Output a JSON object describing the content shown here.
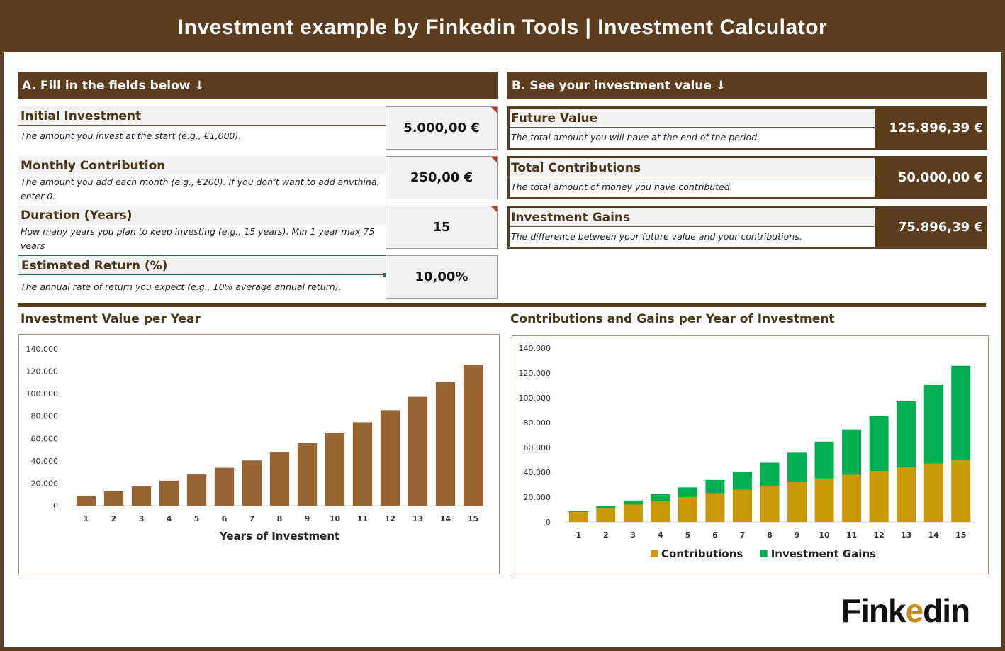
{
  "title": "Investment example by Finkedin Tools | Investment Calculator",
  "section_a": {
    "header": "A. Fill in the fields below ↓",
    "fields": [
      {
        "label": "Initial Investment",
        "desc": "The amount you invest at the start (e.g., €1,000).",
        "value": "5.000,00 €"
      },
      {
        "label": "Monthly Contribution",
        "desc": "The amount you add each month (e.g., €200). If you don’t want to add anvthina. enter 0.",
        "value": "250,00 €"
      },
      {
        "label": "Duration (Years)",
        "desc": "How many years you plan to keep investing (e.g., 15 years). Min 1 year max 75 vears",
        "value": "15"
      },
      {
        "label": "Estimated Return (%)",
        "desc": "The annual rate of return you expect (e.g., 10% average annual return).",
        "value": "10,00%"
      }
    ]
  },
  "section_b": {
    "header": "B. See your investment value ↓",
    "results": [
      {
        "label": "Future Value",
        "desc": "The total amount you will have at the end of the period.",
        "value": "125.896,39 €"
      },
      {
        "label": "Total Contributions",
        "desc": "The total amount of money you have contributed.",
        "value": "50.000,00 €"
      },
      {
        "label": "Investment Gains",
        "desc": "The difference between your future value and your contributions.",
        "value": "75.896,39 €"
      }
    ]
  },
  "logo": {
    "text_main": "Fink",
    "text_accent": "e",
    "text_end": "din",
    "accent_color": "#c98a1a"
  },
  "colors": {
    "brand": "#5c3d1e",
    "bar": "#966533",
    "contrib": "#c99a06",
    "gains": "#00b050"
  },
  "chart_data": [
    {
      "type": "bar",
      "title": "Investment Value per Year",
      "xlabel": "Years of Investment",
      "ylabel": "",
      "categories": [
        "1",
        "2",
        "3",
        "4",
        "5",
        "6",
        "7",
        "8",
        "9",
        "10",
        "11",
        "12",
        "13",
        "14",
        "15"
      ],
      "values": [
        8700,
        12800,
        17300,
        22300,
        27800,
        33800,
        40400,
        47700,
        55800,
        64700,
        74500,
        85300,
        97200,
        110300,
        125896
      ],
      "ylim": [
        0,
        140000
      ],
      "y_ticks": [
        "0",
        "20.000",
        "40.000",
        "60.000",
        "80.000",
        "100.000",
        "120.000",
        "140.000"
      ],
      "grid": false
    },
    {
      "type": "bar",
      "stacked": true,
      "title": "Contributions and Gains per Year of Investment",
      "xlabel": "",
      "ylabel": "",
      "categories": [
        "1",
        "2",
        "3",
        "4",
        "5",
        "6",
        "7",
        "8",
        "9",
        "10",
        "11",
        "12",
        "13",
        "14",
        "15"
      ],
      "series": [
        {
          "name": "Contributions",
          "values": [
            8000,
            11000,
            14000,
            17000,
            20000,
            23000,
            26000,
            29000,
            32000,
            35000,
            38000,
            41000,
            44000,
            47000,
            50000
          ]
        },
        {
          "name": "Investment Gains",
          "values": [
            700,
            1800,
            3300,
            5300,
            7800,
            10800,
            14400,
            18700,
            23800,
            29700,
            36500,
            44300,
            53200,
            63300,
            75896
          ]
        }
      ],
      "ylim": [
        0,
        140000
      ],
      "y_ticks": [
        "0",
        "20.000",
        "40.000",
        "60.000",
        "80.000",
        "100.000",
        "120.000",
        "140.000"
      ],
      "legend": "bottom",
      "grid": false
    }
  ]
}
